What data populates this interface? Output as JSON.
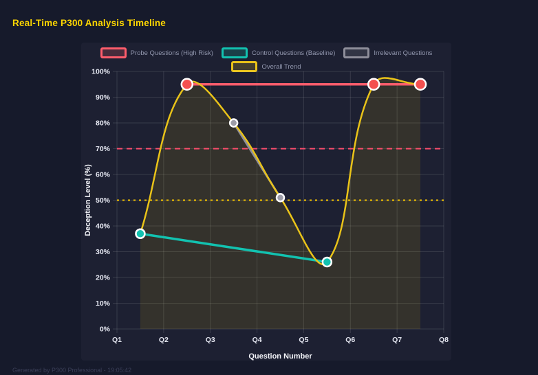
{
  "page": {
    "title": "Real-Time P300 Analysis Timeline",
    "footer": "Generated by P300 Professional - 19:05:42",
    "accent_color": "#ffd700"
  },
  "chart_data": {
    "type": "line",
    "title": "Real-Time P300 Analysis Timeline",
    "xlabel": "Question Number",
    "ylabel": "Deception Level (%)",
    "x_ticks": [
      "Q1",
      "Q2",
      "Q3",
      "Q4",
      "Q5",
      "Q6",
      "Q7",
      "Q8"
    ],
    "xlim": [
      1,
      8
    ],
    "ylim": [
      0,
      100
    ],
    "y_tick_step": 10,
    "y_tick_suffix": "%",
    "grid": true,
    "legend_position": "top",
    "series": [
      {
        "name": "Probe Questions (High Risk)",
        "color": "#ff5d6c",
        "point_color": "#f4504f",
        "point_border": "#ffffff",
        "line_width": 3.5,
        "point_radius": 8,
        "smooth": false,
        "points": [
          {
            "x": 2.5,
            "y": 95
          },
          {
            "x": 6.5,
            "y": 95
          },
          {
            "x": 7.5,
            "y": 95
          }
        ]
      },
      {
        "name": "Control Questions (Baseline)",
        "color": "#12c2b0",
        "point_color": "#12c2b0",
        "point_border": "#ffffff",
        "line_width": 3.5,
        "point_radius": 6.5,
        "smooth": false,
        "points": [
          {
            "x": 1.5,
            "y": 37
          },
          {
            "x": 5.5,
            "y": 26
          }
        ]
      },
      {
        "name": "Irrelevant Questions",
        "color": "#8e8e9a",
        "point_color": "#9d9da8",
        "point_border": "#ffffff",
        "line_width": 3,
        "point_radius": 5.5,
        "smooth": false,
        "points": [
          {
            "x": 3.5,
            "y": 80
          },
          {
            "x": 4.5,
            "y": 51
          }
        ]
      },
      {
        "name": "Overall Trend",
        "color": "#e9c319",
        "line_width": 2.5,
        "point_radius": 0,
        "smooth": true,
        "tension": 0.4,
        "fill": "rgba(255,215,0,0.10)",
        "points": [
          {
            "x": 1.5,
            "y": 37
          },
          {
            "x": 2.5,
            "y": 95
          },
          {
            "x": 3.5,
            "y": 80
          },
          {
            "x": 4.5,
            "y": 51
          },
          {
            "x": 5.5,
            "y": 26
          },
          {
            "x": 6.5,
            "y": 95
          },
          {
            "x": 7.5,
            "y": 95
          }
        ]
      }
    ],
    "thresholds": [
      {
        "y": 70,
        "color": "#ff4d6d",
        "dash": "8 6"
      },
      {
        "y": 50,
        "color": "#f5c400",
        "dash": "3 5"
      }
    ],
    "style": {
      "grid_color": "rgba(255,255,255,0.12)",
      "tick_label_color": "#e6e8f2",
      "axis_title_color": "#f2f3f8",
      "legend_text_color": "#9196ad"
    }
  }
}
